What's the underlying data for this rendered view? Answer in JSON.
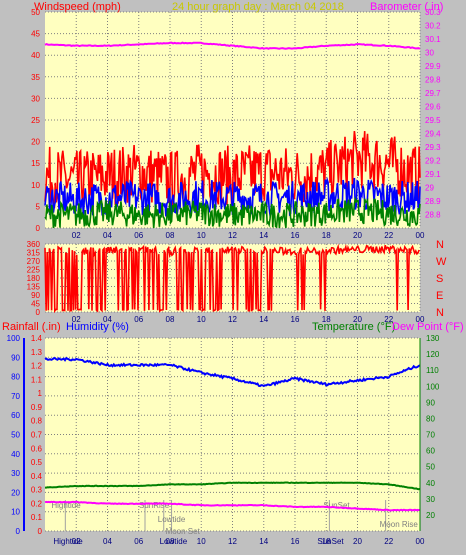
{
  "header": {
    "windspeed": "Windspeed (mph)",
    "title": "24 hour graph day : March 04 2018",
    "barometer": "Barometer (.in)"
  },
  "mid_header": {
    "rainfall": "Rainfall (.in)",
    "humidity": "Humidity (%)",
    "temperature": "Temperature (°F)",
    "dewpoint": "Dew Point (°F)"
  },
  "colors": {
    "background": "#c0c0c0",
    "plot": "#ffffc0",
    "wind": "#ff0000",
    "wind_mid": "#0000ff",
    "wind_low": "#008000",
    "barometer": "#ff00ff",
    "humidity": "#0000ff",
    "temperature": "#008000",
    "dewpoint": "#ff00ff",
    "rain": "#0000ff",
    "grid": "#808080",
    "title": "#c8c800"
  },
  "x_ticks": [
    "02",
    "04",
    "06",
    "08",
    "10",
    "12",
    "14",
    "16",
    "18",
    "20",
    "22",
    "00"
  ],
  "compass_labels": [
    "N",
    "W",
    "S",
    "E",
    "N"
  ],
  "events": [
    {
      "label": "Hightide",
      "hour": 1.3,
      "row": "top"
    },
    {
      "label": "SunRise",
      "hour": 6.4,
      "row": "top"
    },
    {
      "label": "Lowtide",
      "hour": 7.6,
      "row": "mid"
    },
    {
      "label": "Moon Set",
      "hour": 8.1,
      "row": "low"
    },
    {
      "label": "SunSet",
      "hour": 18.2,
      "row": "top"
    },
    {
      "label": "Moon Rise",
      "hour": 21.8,
      "row": "low2"
    }
  ],
  "axis_event_labels": [
    "Hightide",
    "Lowtide",
    "SunSet"
  ],
  "chart_data": [
    {
      "type": "line",
      "title": "24 hour graph day : March 04 2018",
      "ylabel": "Windspeed (mph)",
      "y2label": "Barometer (.in)",
      "ylim": [
        0,
        50
      ],
      "y2lim": [
        28.7,
        30.3
      ],
      "yticks": [
        0,
        5,
        10,
        15,
        20,
        25,
        30,
        35,
        40,
        45,
        50
      ],
      "y2ticks": [
        "28.8",
        "28.9",
        "29",
        "29.1",
        "29.2",
        "29.3",
        "29.4",
        "29.5",
        "29.6",
        "29.7",
        "29.8",
        "29.9",
        "30",
        "30.1",
        "30.2",
        "30.3"
      ],
      "x": [
        0,
        2,
        4,
        6,
        8,
        10,
        12,
        14,
        16,
        18,
        20,
        22,
        24
      ],
      "series": [
        {
          "axis": "y2",
          "values": [
            30.06,
            30.05,
            30.05,
            30.06,
            30.07,
            30.07,
            30.05,
            30.03,
            30.03,
            30.05,
            30.06,
            30.05,
            30.03
          ]
        },
        {
          "axis": "y",
          "values": [
            12,
            11,
            12,
            13,
            11,
            13,
            12,
            13,
            12,
            13,
            16,
            15,
            12
          ]
        },
        {
          "axis": "y",
          "values": [
            7,
            6.5,
            7,
            7,
            6.5,
            7.5,
            7,
            7,
            7,
            7.5,
            8,
            7,
            7
          ]
        },
        {
          "axis": "y",
          "values": [
            3,
            3,
            3.5,
            3,
            3,
            3.5,
            3,
            3,
            3,
            3.5,
            4,
            3.5,
            3
          ]
        }
      ]
    },
    {
      "type": "scatter",
      "ylim": [
        0,
        360
      ],
      "yticks": [
        0,
        45,
        90,
        135,
        180,
        225,
        270,
        315,
        360
      ],
      "x": [
        0,
        2,
        4,
        6,
        8,
        10,
        12,
        14,
        16,
        18,
        20,
        22,
        24
      ],
      "series": [
        {
          "values": [
            330,
            320,
            325,
            330,
            320,
            325,
            330,
            325,
            320,
            325,
            330,
            335,
            325
          ]
        }
      ]
    },
    {
      "type": "line",
      "ylabel": "Humidity (%)",
      "y2label": "Temperature (°F)",
      "ylim": [
        0,
        100
      ],
      "y2lim": [
        10,
        130
      ],
      "yticks": [
        0,
        10,
        20,
        30,
        40,
        50,
        60,
        70,
        80,
        90,
        100
      ],
      "rain_ticks": [
        "0",
        "0.1",
        "0.2",
        "0.3",
        "0.4",
        "0.5",
        "0.6",
        "0.7",
        "0.8",
        "0.9",
        "1",
        "1.1",
        "1.2",
        "1.3",
        "1.4"
      ],
      "y2ticks": [
        20,
        30,
        40,
        50,
        60,
        70,
        80,
        90,
        100,
        110,
        120,
        130
      ],
      "x": [
        0,
        2,
        4,
        6,
        8,
        10,
        12,
        14,
        16,
        18,
        20,
        22,
        24
      ],
      "series": [
        {
          "name": "Humidity (%)",
          "axis": "y",
          "values": [
            89,
            89,
            86,
            86,
            86,
            82,
            79,
            75,
            79,
            76,
            78,
            80,
            86
          ]
        },
        {
          "name": "Temperature (°F)",
          "axis": "y2",
          "values": [
            37,
            38,
            38,
            38,
            39,
            39,
            40,
            40,
            40,
            40,
            40,
            39,
            36
          ]
        },
        {
          "name": "Dew Point (°F)",
          "axis": "y2",
          "values": [
            28,
            28,
            27,
            27,
            27,
            26,
            26,
            26,
            25,
            25,
            24,
            23,
            23
          ]
        }
      ]
    }
  ]
}
